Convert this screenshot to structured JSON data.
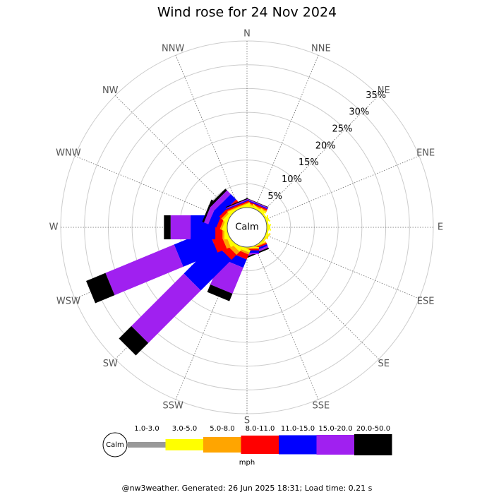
{
  "chart_data": {
    "type": "windrose",
    "title": "Wind rose for 24 Nov 2024",
    "categories": [
      "N",
      "NNE",
      "NE",
      "ENE",
      "E",
      "ESE",
      "SE",
      "SSE",
      "S",
      "SSW",
      "SW",
      "WSW",
      "W",
      "WNW",
      "NW",
      "NNW"
    ],
    "series": [
      {
        "name": "1.0-3.0",
        "color": "#999999",
        "values": [
          0,
          0,
          0,
          0,
          0,
          0,
          0,
          0,
          0,
          0,
          0,
          0,
          0,
          0,
          0,
          0
        ]
      },
      {
        "name": "3.0-5.0",
        "color": "#ffff00",
        "values": [
          0.4,
          0.4,
          0.3,
          0.3,
          0.3,
          0.3,
          0.3,
          0.2,
          0.2,
          0.6,
          0.6,
          0.6,
          0.6,
          0.6,
          0.6,
          0.4
        ]
      },
      {
        "name": "5.0-8.0",
        "color": "#ffa500",
        "values": [
          0.2,
          0.3,
          0,
          0,
          0,
          0,
          0.1,
          0.2,
          0.2,
          0.4,
          0.9,
          0.9,
          0.4,
          0.4,
          0.4,
          0.2
        ]
      },
      {
        "name": "8.0-11.0",
        "color": "#ff0000",
        "values": [
          0.2,
          0.3,
          0,
          0,
          0,
          0,
          0,
          0.3,
          0.3,
          1.1,
          1.5,
          2.1,
          1.5,
          0.8,
          0.6,
          0.3
        ]
      },
      {
        "name": "11.0-15.0",
        "color": "#0000ff",
        "values": [
          0.1,
          0.2,
          0,
          0,
          0,
          0,
          0,
          0.4,
          0.5,
          1.9,
          9.1,
          7.8,
          5.2,
          1.8,
          1.6,
          0.2
        ]
      },
      {
        "name": "15.0-20.0",
        "color": "#a020f0",
        "values": [
          0,
          0.2,
          0,
          0,
          0,
          0,
          0,
          0.4,
          0.3,
          5.9,
          15.6,
          15.6,
          4.2,
          1.0,
          1.1,
          0.2
        ]
      },
      {
        "name": "20.0-50.0",
        "color": "#000000",
        "values": [
          0,
          0.1,
          0,
          0,
          0,
          0,
          0,
          0.3,
          0,
          1.7,
          3.7,
          4.4,
          1.4,
          0.4,
          0.5,
          0.2
        ]
      }
    ],
    "rlim": [
      0,
      35
    ],
    "rticks": [
      {
        "value": 5,
        "label": "5%"
      },
      {
        "value": 10,
        "label": "10%"
      },
      {
        "value": 15,
        "label": "15%"
      },
      {
        "value": 20,
        "label": "20%"
      },
      {
        "value": 25,
        "label": "25%"
      },
      {
        "value": 30,
        "label": "30%"
      },
      {
        "value": 35,
        "label": "35%"
      }
    ],
    "calm_label": "Calm",
    "legend_title": "mph",
    "footer": "@nw3weather. Generated: 26 Jun 2025 18:31; Load time: 0.21 s"
  }
}
